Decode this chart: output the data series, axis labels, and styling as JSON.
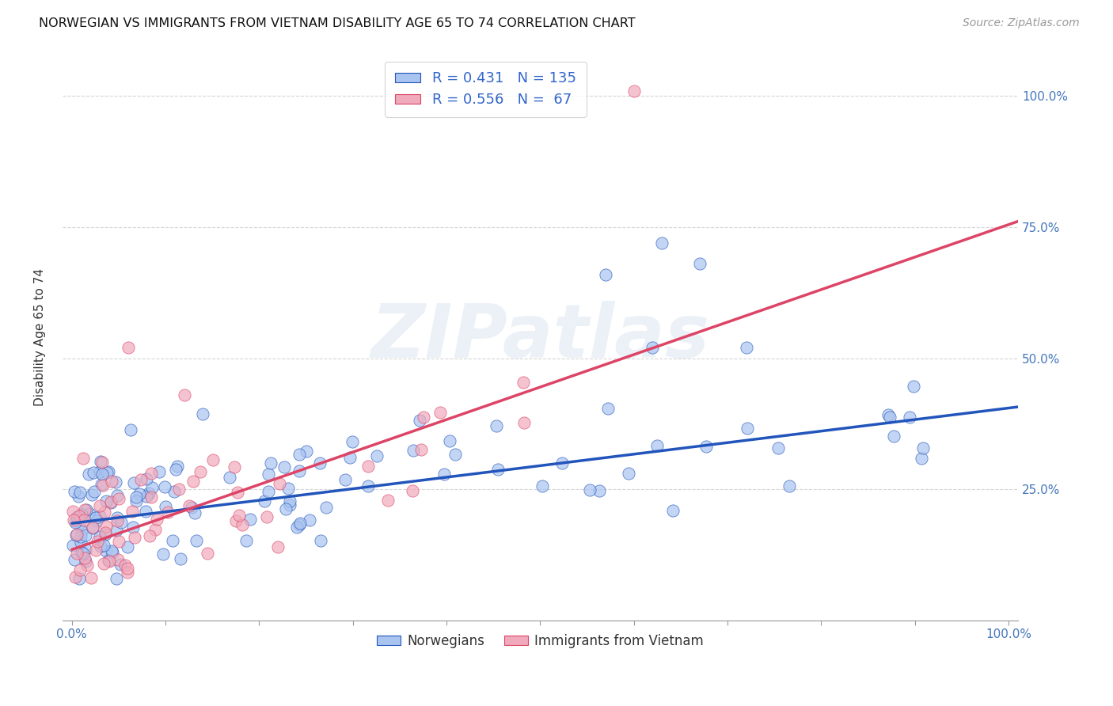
{
  "title": "NORWEGIAN VS IMMIGRANTS FROM VIETNAM DISABILITY AGE 65 TO 74 CORRELATION CHART",
  "source": "Source: ZipAtlas.com",
  "ylabel": "Disability Age 65 to 74",
  "legend_label1": "Norwegians",
  "legend_label2": "Immigrants from Vietnam",
  "R1": 0.431,
  "N1": 135,
  "R2": 0.556,
  "N2": 67,
  "color_norwegian": "#aac4f0",
  "color_vietnam": "#f0aabb",
  "color_norwegian_line": "#2255bb",
  "color_vietnam_line": "#dd4466",
  "watermark": "ZIPatlas",
  "norw_line_m": 0.22,
  "norw_line_b": 0.185,
  "viet_line_m": 0.62,
  "viet_line_b": 0.135,
  "background_color": "#ffffff",
  "grid_color": "#cccccc"
}
